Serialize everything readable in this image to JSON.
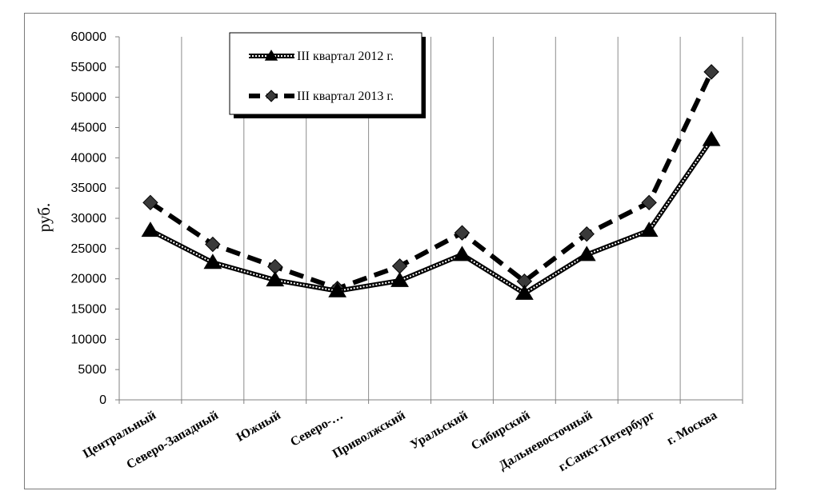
{
  "chart_data": {
    "type": "line",
    "categories": [
      "Центральный",
      "Северо-Западный",
      "Южный",
      "Северо-…",
      "Приволжский",
      "Уральский",
      "Сибирский",
      "Дальневосточный",
      "г.Санкт-Петербург",
      "г. Москва"
    ],
    "series": [
      {
        "name": "III квартал 2012 г.",
        "values": [
          28000,
          22700,
          19800,
          18000,
          19700,
          24000,
          17600,
          24000,
          28000,
          43000
        ],
        "line_style": "dotted-outline",
        "marker": "triangle",
        "color": "#000000"
      },
      {
        "name": "III квартал 2013 г.",
        "values": [
          32600,
          25700,
          22000,
          18400,
          22100,
          27600,
          19600,
          27400,
          32600,
          54200
        ],
        "line_style": "dashed",
        "marker": "diamond",
        "color": "#000000"
      }
    ],
    "ylabel": "руб.",
    "ylim": [
      0,
      60000
    ],
    "yticks": [
      "0",
      "5000",
      "10000",
      "15000",
      "20000",
      "25000",
      "30000",
      "35000",
      "40000",
      "45000",
      "50000",
      "55000",
      "60000"
    ],
    "grid": "vertical",
    "legend": "top-left"
  }
}
